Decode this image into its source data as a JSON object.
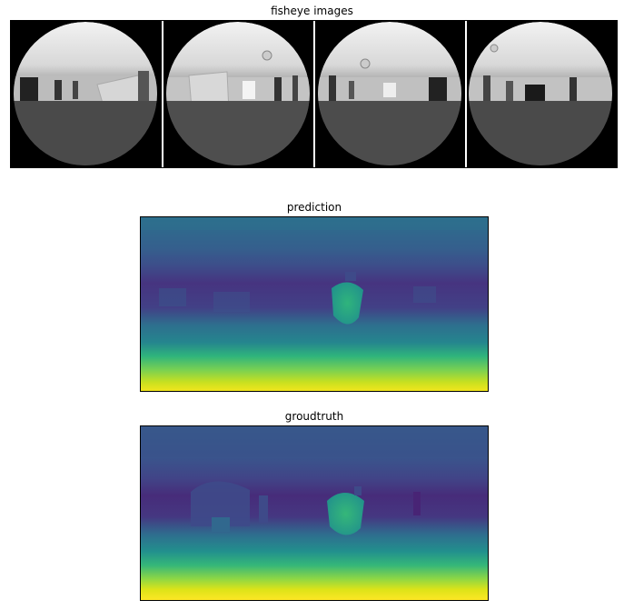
{
  "panels": {
    "fisheye": {
      "title": "fisheye images",
      "view_count": 4
    },
    "prediction": {
      "title": "prediction",
      "colormap": "viridis"
    },
    "groundtruth": {
      "title": "groudtruth",
      "colormap": "viridis"
    }
  },
  "colors": {
    "background": "#ffffff",
    "frame": "#000000",
    "fisheye_background": "#000000",
    "viridis_dark": "#440154",
    "viridis_mid": "#21918c",
    "viridis_light": "#fde725"
  }
}
